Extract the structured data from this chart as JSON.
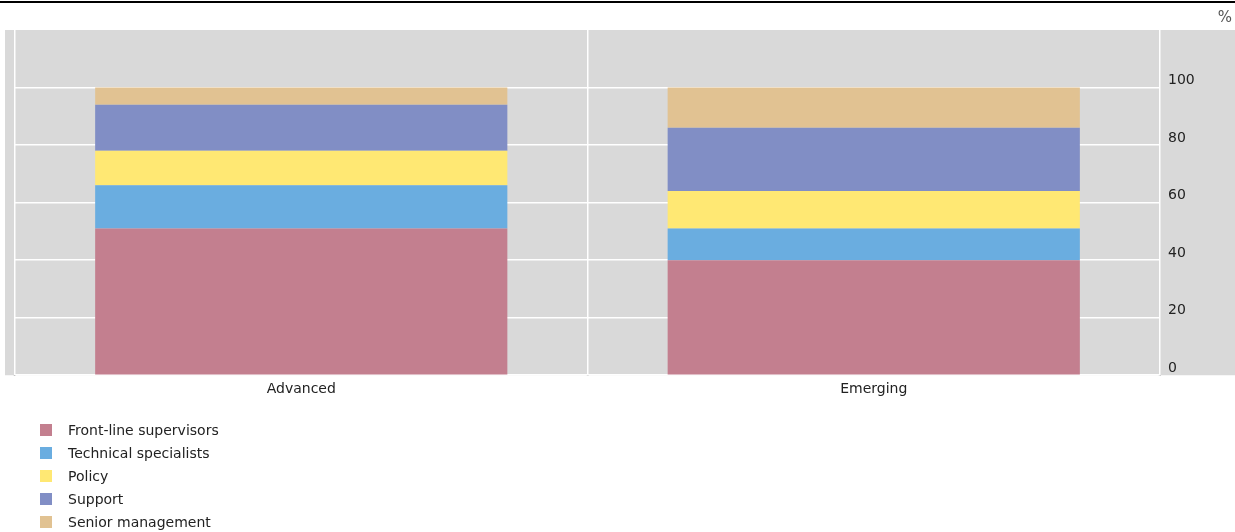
{
  "chart_data": {
    "type": "bar",
    "stacked": true,
    "ylabel": "%",
    "categories": [
      "Advanced",
      "Emerging"
    ],
    "series": [
      {
        "name": "Front-line supervisors",
        "color": "#c37f8f",
        "values": [
          51,
          40
        ]
      },
      {
        "name": "Technical specialists",
        "color": "#6aade0",
        "values": [
          15,
          11
        ]
      },
      {
        "name": "Policy",
        "color": "#ffe873",
        "values": [
          12,
          13
        ]
      },
      {
        "name": "Support",
        "color": "#818ec5",
        "values": [
          16,
          22
        ]
      },
      {
        "name": "Senior management",
        "color": "#e1c292",
        "values": [
          6,
          14
        ]
      }
    ],
    "ylim": [
      0,
      120
    ],
    "yticks": [
      0,
      20,
      40,
      60,
      80,
      100
    ],
    "grid": true,
    "legend": "bottom left"
  }
}
